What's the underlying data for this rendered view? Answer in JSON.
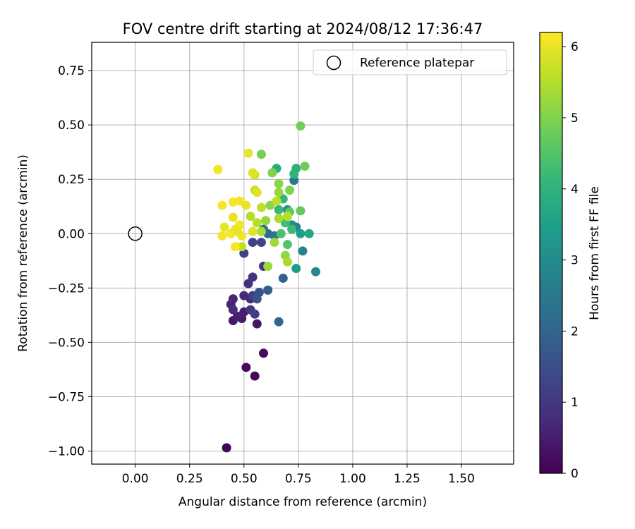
{
  "chart_data": {
    "type": "scatter",
    "title": "FOV centre drift starting at 2024/08/12 17:36:47",
    "xlabel": "Angular distance from reference (arcmin)",
    "ylabel": "Rotation from reference (arcmin)",
    "xlim": [
      -0.2,
      1.74
    ],
    "ylim": [
      -1.06,
      0.88
    ],
    "xticks": [
      0.0,
      0.25,
      0.5,
      0.75,
      1.0,
      1.25,
      1.5
    ],
    "xtick_labels": [
      "0.00",
      "0.25",
      "0.50",
      "0.75",
      "1.00",
      "1.25",
      "1.50"
    ],
    "yticks": [
      0.75,
      0.5,
      0.25,
      0.0,
      -0.25,
      -0.5,
      -0.75,
      -1.0
    ],
    "ytick_labels": [
      "0.75",
      "0.50",
      "0.25",
      "0.00",
      "−0.25",
      "−0.50",
      "−0.75",
      "−1.00"
    ],
    "grid": true,
    "legend": {
      "placement": "top-right",
      "entries": [
        {
          "label": "Reference platepar",
          "marker": "open-circle"
        }
      ]
    },
    "reference_point": {
      "x": 0.0,
      "y": 0.0
    },
    "colorbar": {
      "label": "Hours from first FF file",
      "range": [
        0,
        6.2
      ],
      "ticks": [
        0,
        1,
        2,
        3,
        4,
        5,
        6
      ],
      "tick_labels": [
        "0",
        "1",
        "2",
        "3",
        "4",
        "5",
        "6"
      ],
      "colormap": "viridis",
      "stops": [
        "#440154",
        "#482878",
        "#3e4989",
        "#31688e",
        "#26828e",
        "#1f9e89",
        "#35b779",
        "#6ece58",
        "#b5de2b",
        "#fde725"
      ]
    },
    "points": [
      {
        "x": 0.42,
        "y": -0.985,
        "h": 0.05
      },
      {
        "x": 0.55,
        "y": -0.655,
        "h": 0.1
      },
      {
        "x": 0.51,
        "y": -0.615,
        "h": 0.15
      },
      {
        "x": 0.59,
        "y": -0.55,
        "h": 0.2
      },
      {
        "x": 0.56,
        "y": -0.415,
        "h": 0.35
      },
      {
        "x": 0.45,
        "y": -0.4,
        "h": 0.4
      },
      {
        "x": 0.49,
        "y": -0.39,
        "h": 0.45
      },
      {
        "x": 0.5,
        "y": -0.36,
        "h": 0.5
      },
      {
        "x": 0.47,
        "y": -0.38,
        "h": 0.55
      },
      {
        "x": 0.44,
        "y": -0.325,
        "h": 0.6
      },
      {
        "x": 0.45,
        "y": -0.3,
        "h": 0.65
      },
      {
        "x": 0.5,
        "y": -0.285,
        "h": 0.7
      },
      {
        "x": 0.53,
        "y": -0.3,
        "h": 0.75
      },
      {
        "x": 0.45,
        "y": -0.35,
        "h": 0.8
      },
      {
        "x": 0.52,
        "y": -0.23,
        "h": 0.85
      },
      {
        "x": 0.54,
        "y": -0.2,
        "h": 0.9
      },
      {
        "x": 0.59,
        "y": -0.15,
        "h": 0.95
      },
      {
        "x": 0.53,
        "y": -0.35,
        "h": 1.05
      },
      {
        "x": 0.55,
        "y": -0.37,
        "h": 1.1
      },
      {
        "x": 0.54,
        "y": -0.285,
        "h": 1.15
      },
      {
        "x": 0.5,
        "y": -0.09,
        "h": 1.2
      },
      {
        "x": 0.54,
        "y": -0.04,
        "h": 1.25
      },
      {
        "x": 0.58,
        "y": -0.04,
        "h": 1.3
      },
      {
        "x": 0.57,
        "y": -0.27,
        "h": 1.5
      },
      {
        "x": 0.56,
        "y": -0.3,
        "h": 1.6
      },
      {
        "x": 0.61,
        "y": -0.26,
        "h": 1.8
      },
      {
        "x": 0.68,
        "y": -0.205,
        "h": 1.9
      },
      {
        "x": 0.66,
        "y": -0.405,
        "h": 2.0
      },
      {
        "x": 0.61,
        "y": 0.0,
        "h": 2.2
      },
      {
        "x": 0.59,
        "y": 0.02,
        "h": 2.3
      },
      {
        "x": 0.64,
        "y": -0.01,
        "h": 2.4
      },
      {
        "x": 0.73,
        "y": 0.245,
        "h": 2.6
      },
      {
        "x": 0.74,
        "y": 0.03,
        "h": 2.7
      },
      {
        "x": 0.77,
        "y": -0.08,
        "h": 2.8
      },
      {
        "x": 0.83,
        "y": -0.175,
        "h": 2.9
      },
      {
        "x": 0.72,
        "y": 0.04,
        "h": 3.0
      },
      {
        "x": 0.7,
        "y": 0.11,
        "h": 3.2
      },
      {
        "x": 0.74,
        "y": -0.16,
        "h": 3.4
      },
      {
        "x": 0.76,
        "y": 0.0,
        "h": 3.5
      },
      {
        "x": 0.8,
        "y": 0.0,
        "h": 3.7
      },
      {
        "x": 0.65,
        "y": 0.3,
        "h": 3.8
      },
      {
        "x": 0.74,
        "y": 0.3,
        "h": 3.9
      },
      {
        "x": 0.73,
        "y": 0.275,
        "h": 4.0
      },
      {
        "x": 0.68,
        "y": 0.16,
        "h": 4.05
      },
      {
        "x": 0.66,
        "y": 0.11,
        "h": 4.15
      },
      {
        "x": 0.72,
        "y": 0.02,
        "h": 4.2
      },
      {
        "x": 0.69,
        "y": 0.05,
        "h": 4.3
      },
      {
        "x": 0.67,
        "y": 0.0,
        "h": 4.4
      },
      {
        "x": 0.7,
        "y": -0.05,
        "h": 4.5
      },
      {
        "x": 0.71,
        "y": 0.1,
        "h": 4.6
      },
      {
        "x": 0.76,
        "y": 0.105,
        "h": 4.7
      },
      {
        "x": 0.78,
        "y": 0.31,
        "h": 4.8
      },
      {
        "x": 0.76,
        "y": 0.495,
        "h": 4.85
      },
      {
        "x": 0.58,
        "y": 0.365,
        "h": 4.9
      },
      {
        "x": 0.63,
        "y": 0.28,
        "h": 5.0
      },
      {
        "x": 0.66,
        "y": 0.23,
        "h": 5.1
      },
      {
        "x": 0.66,
        "y": 0.19,
        "h": 5.2
      },
      {
        "x": 0.71,
        "y": 0.2,
        "h": 5.0
      },
      {
        "x": 0.62,
        "y": 0.13,
        "h": 5.1
      },
      {
        "x": 0.6,
        "y": 0.06,
        "h": 5.2
      },
      {
        "x": 0.64,
        "y": -0.04,
        "h": 5.3
      },
      {
        "x": 0.69,
        "y": -0.1,
        "h": 5.2
      },
      {
        "x": 0.7,
        "y": -0.13,
        "h": 5.4
      },
      {
        "x": 0.61,
        "y": -0.15,
        "h": 5.3
      },
      {
        "x": 0.58,
        "y": 0.01,
        "h": 5.4
      },
      {
        "x": 0.56,
        "y": 0.05,
        "h": 5.5
      },
      {
        "x": 0.66,
        "y": 0.07,
        "h": 5.4
      },
      {
        "x": 0.7,
        "y": 0.08,
        "h": 5.5
      },
      {
        "x": 0.65,
        "y": 0.15,
        "h": 5.6
      },
      {
        "x": 0.58,
        "y": 0.12,
        "h": 5.6
      },
      {
        "x": 0.53,
        "y": 0.08,
        "h": 5.5
      },
      {
        "x": 0.49,
        "y": -0.06,
        "h": 5.6
      },
      {
        "x": 0.55,
        "y": 0.2,
        "h": 5.7
      },
      {
        "x": 0.55,
        "y": 0.27,
        "h": 5.8
      },
      {
        "x": 0.54,
        "y": 0.28,
        "h": 5.9
      },
      {
        "x": 0.52,
        "y": 0.37,
        "h": 6.0
      },
      {
        "x": 0.38,
        "y": 0.295,
        "h": 6.1
      },
      {
        "x": 0.51,
        "y": 0.13,
        "h": 6.0
      },
      {
        "x": 0.48,
        "y": 0.15,
        "h": 6.1
      },
      {
        "x": 0.45,
        "y": 0.145,
        "h": 6.15
      },
      {
        "x": 0.4,
        "y": 0.13,
        "h": 6.1
      },
      {
        "x": 0.45,
        "y": 0.075,
        "h": 6.0
      },
      {
        "x": 0.48,
        "y": 0.04,
        "h": 6.1
      },
      {
        "x": 0.41,
        "y": 0.03,
        "h": 6.0
      },
      {
        "x": 0.4,
        "y": -0.01,
        "h": 6.1
      },
      {
        "x": 0.44,
        "y": 0.0,
        "h": 6.15
      },
      {
        "x": 0.46,
        "y": 0.02,
        "h": 6.0
      },
      {
        "x": 0.49,
        "y": -0.01,
        "h": 6.1
      },
      {
        "x": 0.46,
        "y": -0.06,
        "h": 6.15
      },
      {
        "x": 0.47,
        "y": 0.01,
        "h": 6.0
      },
      {
        "x": 0.56,
        "y": 0.19,
        "h": 5.9
      },
      {
        "x": 0.54,
        "y": 0.01,
        "h": 5.95
      }
    ]
  }
}
